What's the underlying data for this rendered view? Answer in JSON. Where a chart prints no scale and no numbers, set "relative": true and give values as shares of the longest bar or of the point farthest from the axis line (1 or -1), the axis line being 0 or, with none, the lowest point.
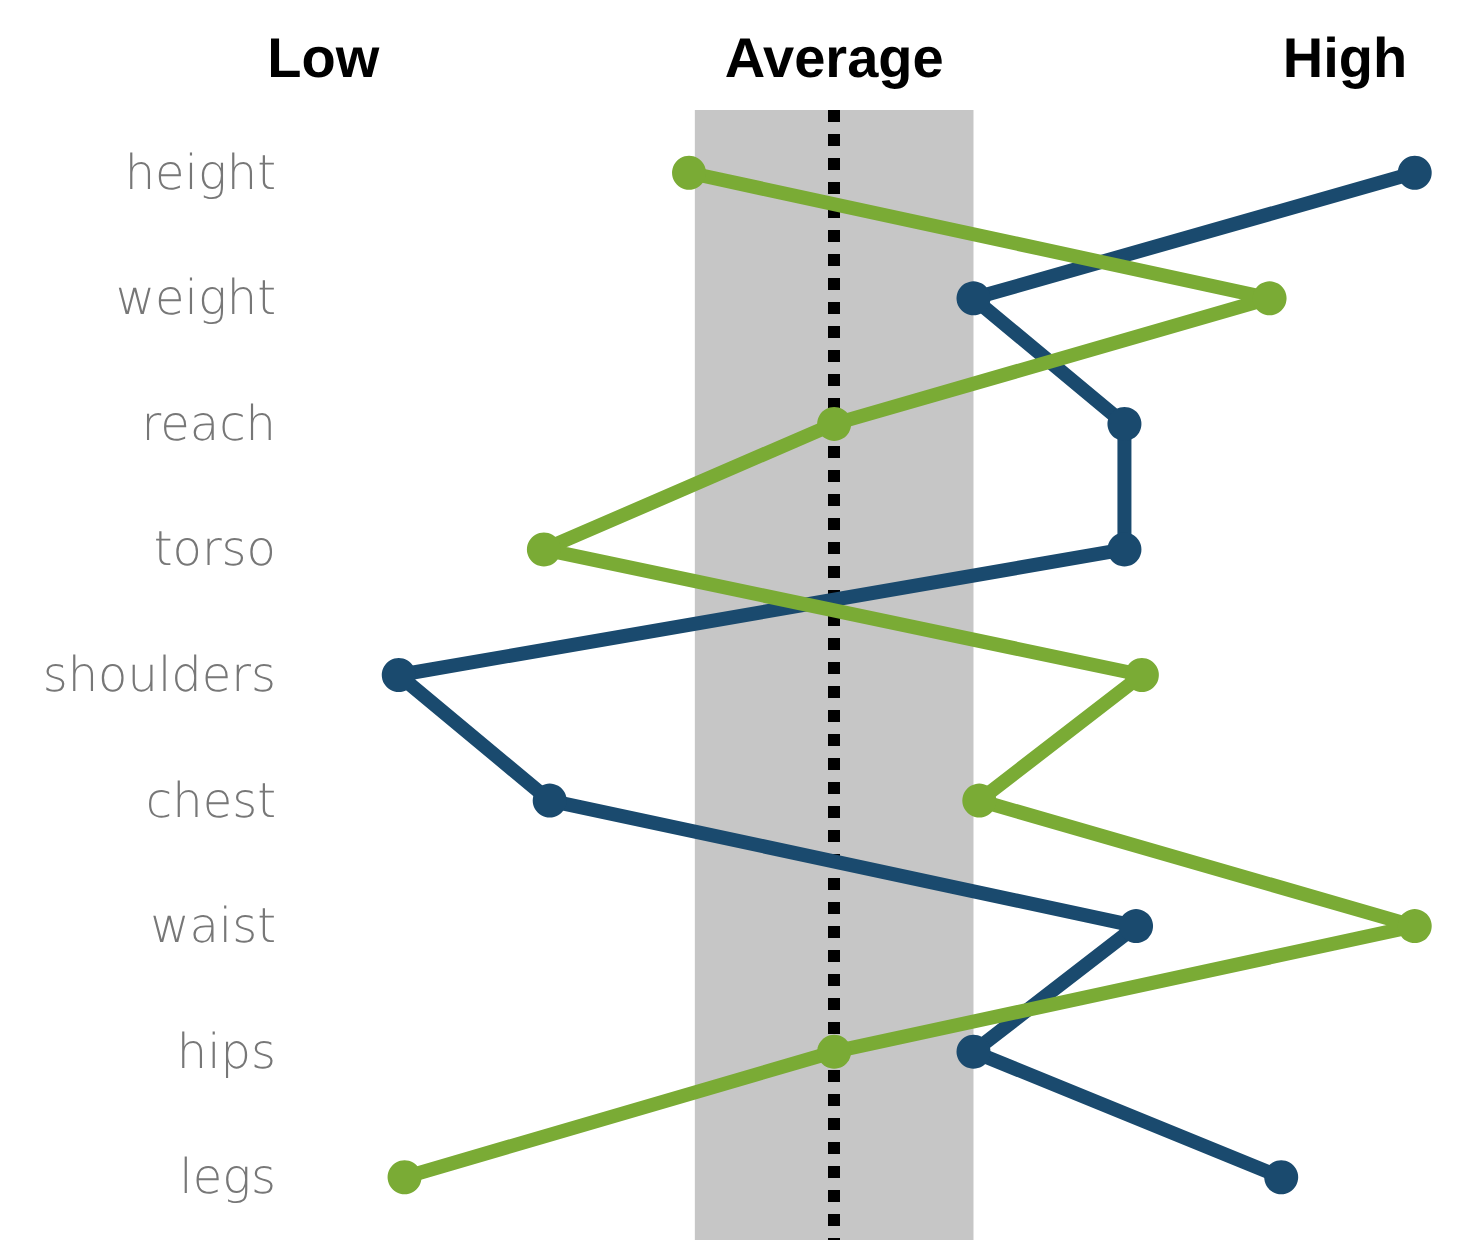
{
  "chart_data": {
    "type": "line",
    "orientation": "horizontal",
    "relative": true,
    "categories": [
      "height",
      "weight",
      "reach",
      "torso",
      "shoulders",
      "chest",
      "waist",
      "hips",
      "legs"
    ],
    "series": [
      {
        "color": "#1a4a6e",
        "values": [
          1,
          0.24,
          0.5,
          0.5,
          -0.75,
          -0.49,
          0.52,
          0.24,
          0.77
        ]
      },
      {
        "color": "#7aab35",
        "values": [
          -0.25,
          0.75,
          0,
          -0.5,
          0.53,
          0.25,
          1,
          0,
          -0.74
        ]
      }
    ],
    "annotations": [
      "Low",
      "Average",
      "High"
    ],
    "bands": [
      {
        "axis": "x",
        "from": -0.24,
        "to": 0.24,
        "color": "#c6c6c6"
      }
    ],
    "ref_lines": [
      {
        "axis": "x",
        "value": 0,
        "color": "#000000",
        "line_style": "dotted"
      }
    ],
    "marker": "circle",
    "line_style": "solid"
  }
}
